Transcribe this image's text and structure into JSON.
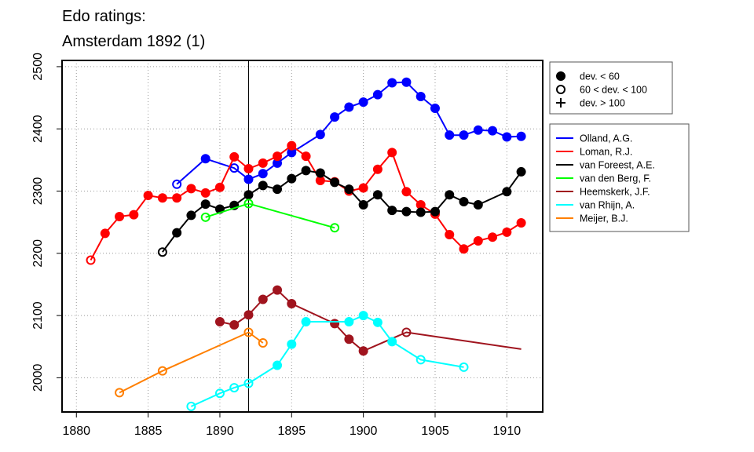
{
  "chart_data": {
    "type": "line",
    "title": [
      "Edo ratings:",
      "Amsterdam 1892 (1)"
    ],
    "xlabel": "",
    "ylabel": "",
    "xlim": [
      1879,
      1912.5
    ],
    "ylim": [
      1945,
      2510
    ],
    "xticks": [
      1880,
      1885,
      1890,
      1895,
      1900,
      1905,
      1910
    ],
    "yticks": [
      2000,
      2100,
      2200,
      2300,
      2400,
      2500
    ],
    "grid": "dotted",
    "reference_line_x": 1892,
    "marker_legend": [
      {
        "marker": "filled",
        "label": "dev. < 60"
      },
      {
        "marker": "open",
        "label": "60 < dev. < 100"
      },
      {
        "marker": "plus",
        "label": "dev. > 100"
      }
    ],
    "series": [
      {
        "name": "Olland, A.G.",
        "color": "#0000ff",
        "points": [
          {
            "x": 1887,
            "y": 2311,
            "m": "open"
          },
          {
            "x": 1889,
            "y": 2352,
            "m": "filled"
          },
          {
            "x": 1891,
            "y": 2337,
            "m": "open"
          },
          {
            "x": 1892,
            "y": 2319,
            "m": "filled"
          },
          {
            "x": 1893,
            "y": 2328,
            "m": "filled"
          },
          {
            "x": 1894,
            "y": 2345,
            "m": "filled"
          },
          {
            "x": 1895,
            "y": 2362,
            "m": "filled"
          },
          {
            "x": 1897,
            "y": 2391,
            "m": "filled"
          },
          {
            "x": 1898,
            "y": 2419,
            "m": "filled"
          },
          {
            "x": 1899,
            "y": 2435,
            "m": "filled"
          },
          {
            "x": 1900,
            "y": 2443,
            "m": "filled"
          },
          {
            "x": 1901,
            "y": 2455,
            "m": "filled"
          },
          {
            "x": 1902,
            "y": 2474,
            "m": "filled"
          },
          {
            "x": 1903,
            "y": 2475,
            "m": "filled"
          },
          {
            "x": 1904,
            "y": 2452,
            "m": "filled"
          },
          {
            "x": 1905,
            "y": 2433,
            "m": "filled"
          },
          {
            "x": 1906,
            "y": 2390,
            "m": "filled"
          },
          {
            "x": 1907,
            "y": 2390,
            "m": "filled"
          },
          {
            "x": 1908,
            "y": 2398,
            "m": "filled"
          },
          {
            "x": 1909,
            "y": 2397,
            "m": "filled"
          },
          {
            "x": 1910,
            "y": 2387,
            "m": "filled"
          },
          {
            "x": 1911,
            "y": 2388,
            "m": "filled"
          }
        ]
      },
      {
        "name": "Loman, R.J.",
        "color": "#ff0000",
        "points": [
          {
            "x": 1881,
            "y": 2189,
            "m": "open"
          },
          {
            "x": 1882,
            "y": 2232,
            "m": "filled"
          },
          {
            "x": 1883,
            "y": 2259,
            "m": "filled"
          },
          {
            "x": 1884,
            "y": 2262,
            "m": "filled"
          },
          {
            "x": 1885,
            "y": 2293,
            "m": "filled"
          },
          {
            "x": 1886,
            "y": 2289,
            "m": "filled"
          },
          {
            "x": 1887,
            "y": 2289,
            "m": "filled"
          },
          {
            "x": 1888,
            "y": 2304,
            "m": "filled"
          },
          {
            "x": 1889,
            "y": 2297,
            "m": "filled"
          },
          {
            "x": 1890,
            "y": 2306,
            "m": "filled"
          },
          {
            "x": 1891,
            "y": 2355,
            "m": "filled"
          },
          {
            "x": 1892,
            "y": 2336,
            "m": "filled"
          },
          {
            "x": 1893,
            "y": 2345,
            "m": "filled"
          },
          {
            "x": 1894,
            "y": 2356,
            "m": "filled"
          },
          {
            "x": 1895,
            "y": 2373,
            "m": "filled"
          },
          {
            "x": 1896,
            "y": 2356,
            "m": "filled"
          },
          {
            "x": 1897,
            "y": 2317,
            "m": "filled"
          },
          {
            "x": 1898,
            "y": 2315,
            "m": "filled"
          },
          {
            "x": 1899,
            "y": 2300,
            "m": "filled"
          },
          {
            "x": 1900,
            "y": 2305,
            "m": "filled"
          },
          {
            "x": 1901,
            "y": 2335,
            "m": "filled"
          },
          {
            "x": 1902,
            "y": 2362,
            "m": "filled"
          },
          {
            "x": 1903,
            "y": 2299,
            "m": "filled"
          },
          {
            "x": 1904,
            "y": 2278,
            "m": "filled"
          },
          {
            "x": 1905,
            "y": 2263,
            "m": "filled"
          },
          {
            "x": 1906,
            "y": 2230,
            "m": "filled"
          },
          {
            "x": 1907,
            "y": 2207,
            "m": "filled"
          },
          {
            "x": 1908,
            "y": 2220,
            "m": "filled"
          },
          {
            "x": 1909,
            "y": 2226,
            "m": "filled"
          },
          {
            "x": 1910,
            "y": 2234,
            "m": "filled"
          },
          {
            "x": 1911,
            "y": 2249,
            "m": "filled"
          }
        ]
      },
      {
        "name": "van Foreest, A.E.",
        "color": "#000000",
        "points": [
          {
            "x": 1886,
            "y": 2202,
            "m": "open"
          },
          {
            "x": 1887,
            "y": 2233,
            "m": "filled"
          },
          {
            "x": 1888,
            "y": 2261,
            "m": "filled"
          },
          {
            "x": 1889,
            "y": 2279,
            "m": "filled"
          },
          {
            "x": 1890,
            "y": 2271,
            "m": "filled"
          },
          {
            "x": 1891,
            "y": 2277,
            "m": "filled"
          },
          {
            "x": 1892,
            "y": 2294,
            "m": "filled"
          },
          {
            "x": 1893,
            "y": 2309,
            "m": "filled"
          },
          {
            "x": 1894,
            "y": 2303,
            "m": "filled"
          },
          {
            "x": 1895,
            "y": 2320,
            "m": "filled"
          },
          {
            "x": 1896,
            "y": 2333,
            "m": "filled"
          },
          {
            "x": 1897,
            "y": 2329,
            "m": "filled"
          },
          {
            "x": 1898,
            "y": 2314,
            "m": "filled"
          },
          {
            "x": 1899,
            "y": 2303,
            "m": "filled"
          },
          {
            "x": 1900,
            "y": 2278,
            "m": "filled"
          },
          {
            "x": 1901,
            "y": 2294,
            "m": "filled"
          },
          {
            "x": 1902,
            "y": 2269,
            "m": "filled"
          },
          {
            "x": 1903,
            "y": 2267,
            "m": "filled"
          },
          {
            "x": 1904,
            "y": 2266,
            "m": "filled"
          },
          {
            "x": 1905,
            "y": 2267,
            "m": "filled"
          },
          {
            "x": 1906,
            "y": 2294,
            "m": "filled"
          },
          {
            "x": 1907,
            "y": 2283,
            "m": "filled"
          },
          {
            "x": 1908,
            "y": 2278,
            "m": "filled"
          },
          {
            "x": 1910,
            "y": 2299,
            "m": "filled"
          },
          {
            "x": 1911,
            "y": 2331,
            "m": "filled"
          }
        ]
      },
      {
        "name": "van den Berg, F.",
        "color": "#00ff00",
        "points": [
          {
            "x": 1889,
            "y": 2258,
            "m": "open"
          },
          {
            "x": 1892,
            "y": 2280,
            "m": "open"
          },
          {
            "x": 1898,
            "y": 2241,
            "m": "open"
          }
        ]
      },
      {
        "name": "Heemskerk, J.F.",
        "color": "#a0141e",
        "points": [
          {
            "x": 1890,
            "y": 2090,
            "m": "filled"
          },
          {
            "x": 1891,
            "y": 2085,
            "m": "filled"
          },
          {
            "x": 1892,
            "y": 2101,
            "m": "filled"
          },
          {
            "x": 1893,
            "y": 2126,
            "m": "filled"
          },
          {
            "x": 1894,
            "y": 2141,
            "m": "filled"
          },
          {
            "x": 1895,
            "y": 2119,
            "m": "filled"
          },
          {
            "x": 1898,
            "y": 2087,
            "m": "filled"
          },
          {
            "x": 1899,
            "y": 2062,
            "m": "filled"
          },
          {
            "x": 1900,
            "y": 2043,
            "m": "filled"
          },
          {
            "x": 1903,
            "y": 2073,
            "m": "open"
          },
          {
            "x": 1911,
            "y": 2046,
            "m": "none"
          }
        ]
      },
      {
        "name": "van Rhijn, A.",
        "color": "#00ffff",
        "points": [
          {
            "x": 1888,
            "y": 1954,
            "m": "open"
          },
          {
            "x": 1890,
            "y": 1975,
            "m": "open"
          },
          {
            "x": 1891,
            "y": 1984,
            "m": "open"
          },
          {
            "x": 1892,
            "y": 1991,
            "m": "open"
          },
          {
            "x": 1894,
            "y": 2020,
            "m": "filled"
          },
          {
            "x": 1895,
            "y": 2054,
            "m": "filled"
          },
          {
            "x": 1896,
            "y": 2090,
            "m": "filled"
          },
          {
            "x": 1899,
            "y": 2090,
            "m": "filled"
          },
          {
            "x": 1900,
            "y": 2100,
            "m": "filled"
          },
          {
            "x": 1901,
            "y": 2089,
            "m": "filled"
          },
          {
            "x": 1902,
            "y": 2058,
            "m": "filled"
          },
          {
            "x": 1904,
            "y": 2029,
            "m": "open"
          },
          {
            "x": 1907,
            "y": 2017,
            "m": "open"
          }
        ]
      },
      {
        "name": "Meijer, B.J.",
        "color": "#ff7f00",
        "points": [
          {
            "x": 1883,
            "y": 1976,
            "m": "open"
          },
          {
            "x": 1886,
            "y": 2011,
            "m": "open"
          },
          {
            "x": 1892,
            "y": 2073,
            "m": "open"
          },
          {
            "x": 1893,
            "y": 2056,
            "m": "open"
          }
        ]
      }
    ]
  }
}
